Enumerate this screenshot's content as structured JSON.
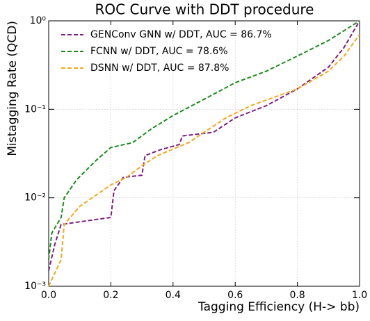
{
  "chart_data": {
    "type": "line",
    "title": "ROC Curve with DDT procedure",
    "xlabel": "Tagging Efficiency (H-> bb)",
    "ylabel": "Mistagging Rate (QCD)",
    "log_y": true,
    "grid": true,
    "legend": "upper left",
    "xlim": [
      0,
      1
    ],
    "ylim": [
      0.001,
      1
    ],
    "xticks": [
      {
        "value": 0,
        "label": "0.0"
      },
      0.2,
      0.4,
      0.6,
      0.8,
      {
        "value": 1,
        "label": "1.0"
      }
    ],
    "yticks": [
      {
        "value": 0.001,
        "label": "10⁻³"
      },
      {
        "value": 0.01,
        "label": "10⁻²"
      },
      {
        "value": 0.1,
        "label": "10⁻¹"
      },
      {
        "value": 1,
        "label": "10⁰"
      }
    ],
    "series": [
      {
        "name": "GENConv GNN w/ DDT, AUC = 86.7%",
        "color": "#7b1f7e",
        "x": [
          0,
          0.02,
          0.04,
          0.2,
          0.21,
          0.24,
          0.3,
          0.31,
          0.36,
          0.42,
          0.43,
          0.53,
          0.6,
          0.7,
          0.8,
          0.9,
          0.95,
          1.0
        ],
        "values": [
          0.0015,
          0.003,
          0.005,
          0.006,
          0.012,
          0.017,
          0.018,
          0.03,
          0.035,
          0.04,
          0.05,
          0.055,
          0.08,
          0.11,
          0.17,
          0.3,
          0.5,
          1.0
        ]
      },
      {
        "name": "FCNN w/ DDT, AUC = 78.6%",
        "color": "#1f8a1f",
        "x": [
          0,
          0.01,
          0.04,
          0.05,
          0.09,
          0.15,
          0.2,
          0.27,
          0.33,
          0.4,
          0.5,
          0.6,
          0.7,
          0.8,
          0.9,
          1.0
        ],
        "values": [
          0.002,
          0.004,
          0.006,
          0.01,
          0.016,
          0.026,
          0.037,
          0.042,
          0.06,
          0.085,
          0.13,
          0.2,
          0.27,
          0.4,
          0.6,
          1.0
        ]
      },
      {
        "name": "DSNN w/ DDT, AUC = 87.8%",
        "color": "#f0a920",
        "x": [
          0,
          0.04,
          0.05,
          0.1,
          0.2,
          0.25,
          0.3,
          0.35,
          0.42,
          0.45,
          0.5,
          0.57,
          0.65,
          0.8,
          0.9,
          0.95,
          1.0
        ],
        "values": [
          0.001,
          0.002,
          0.005,
          0.008,
          0.014,
          0.017,
          0.023,
          0.03,
          0.038,
          0.042,
          0.055,
          0.08,
          0.11,
          0.17,
          0.27,
          0.4,
          0.7
        ]
      }
    ]
  }
}
